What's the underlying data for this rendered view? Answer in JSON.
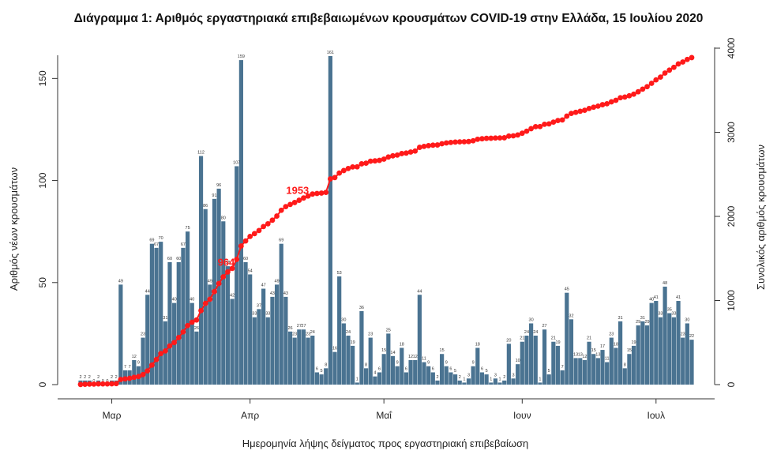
{
  "chart_data": {
    "type": "bar+line",
    "title": "Διάγραμμα 1: Αριθμός εργαστηριακά επιβεβαιωμένων κρουσμάτων COVID-19 στην Ελλάδα, 15 Ιουλίου 2020",
    "xlabel": "Ημερομηνία λήψης δείγματος προς εργαστηριακή επιβεβαίωση",
    "ylabel_left": "Αριθμός νέων κρουσμάτων",
    "ylabel_right": "Συνολικός αριθμός κρουσμάτων",
    "ylim_left": [
      0,
      166
    ],
    "ylim_right": [
      0,
      4000
    ],
    "yticks_left": [
      0,
      50,
      100,
      150
    ],
    "yticks_right": [
      0,
      1000,
      2000,
      3000,
      4000
    ],
    "x_month_labels": [
      {
        "label": "Μαρ",
        "index": 7
      },
      {
        "label": "Απρ",
        "index": 38
      },
      {
        "label": "Μαΐ",
        "index": 68
      },
      {
        "label": "Ιουν",
        "index": 99
      },
      {
        "label": "Ιουλ",
        "index": 129
      }
    ],
    "daily_series": {
      "name": "Νέα κρούσματα",
      "color": "#4a7391",
      "values": [
        2,
        2,
        2,
        0,
        2,
        0,
        0,
        2,
        2,
        49,
        7,
        7,
        12,
        9,
        23,
        44,
        69,
        67,
        70,
        31,
        60,
        40,
        60,
        67,
        75,
        40,
        26,
        112,
        86,
        49,
        91,
        96,
        80,
        58,
        42,
        107,
        159,
        60,
        54,
        33,
        37,
        47,
        33,
        43,
        49,
        69,
        43,
        26,
        23,
        27,
        27,
        23,
        24,
        6,
        5,
        8,
        161,
        16,
        53,
        30,
        24,
        19,
        1,
        36,
        8,
        23,
        4,
        6,
        15,
        25,
        14,
        9,
        18,
        6,
        12,
        12,
        44,
        11,
        9,
        6,
        2,
        15,
        9,
        6,
        5,
        2,
        1,
        3,
        9,
        18,
        6,
        5,
        1,
        3,
        1,
        2,
        20,
        3,
        10,
        21,
        24,
        30,
        24,
        1,
        27,
        5,
        21,
        19,
        7,
        45,
        32,
        13,
        13,
        12,
        21,
        15,
        13,
        17,
        11,
        23,
        18,
        31,
        8,
        15,
        19,
        29,
        31,
        29,
        40,
        41,
        33,
        48,
        35,
        33,
        41,
        23,
        30,
        22
      ],
      "labeled_values": [
        2,
        2,
        2,
        0,
        2,
        0,
        0,
        2,
        2,
        49,
        7,
        7,
        12,
        9,
        23,
        44,
        69,
        67,
        70,
        31,
        60,
        40,
        60,
        67,
        75,
        40,
        26,
        112,
        86,
        49,
        91,
        96,
        80,
        58,
        42,
        107,
        159,
        60,
        54,
        33,
        37,
        47,
        33,
        43,
        49,
        69,
        43,
        26,
        23,
        27,
        27,
        23,
        24,
        6,
        5,
        8,
        161,
        16,
        53,
        30,
        24,
        19,
        1,
        36,
        8,
        23,
        4,
        6,
        15,
        25,
        14,
        9,
        18,
        6,
        12,
        12,
        44,
        11,
        9,
        6,
        2,
        15,
        9,
        6,
        5,
        2,
        1,
        3,
        9,
        18,
        6,
        5,
        1,
        3,
        1,
        2,
        20,
        3,
        10,
        21,
        24,
        30,
        24,
        1,
        27,
        5,
        21,
        19,
        7,
        45,
        32,
        13,
        13,
        12,
        21,
        15,
        13,
        17,
        11,
        23,
        18,
        31,
        8,
        15,
        19,
        29,
        31,
        29,
        40,
        41,
        33,
        48,
        35,
        33,
        41,
        23,
        30,
        22
      ]
    },
    "cumulative_series": {
      "name": "Συνολικά κρούσματα",
      "color": "#ff1a1a",
      "axis": "right",
      "annotations": [
        {
          "label": "964",
          "index": 33
        },
        {
          "label": "1953",
          "index": 49
        },
        {
          "label": "3910",
          "index": 138
        }
      ]
    }
  }
}
